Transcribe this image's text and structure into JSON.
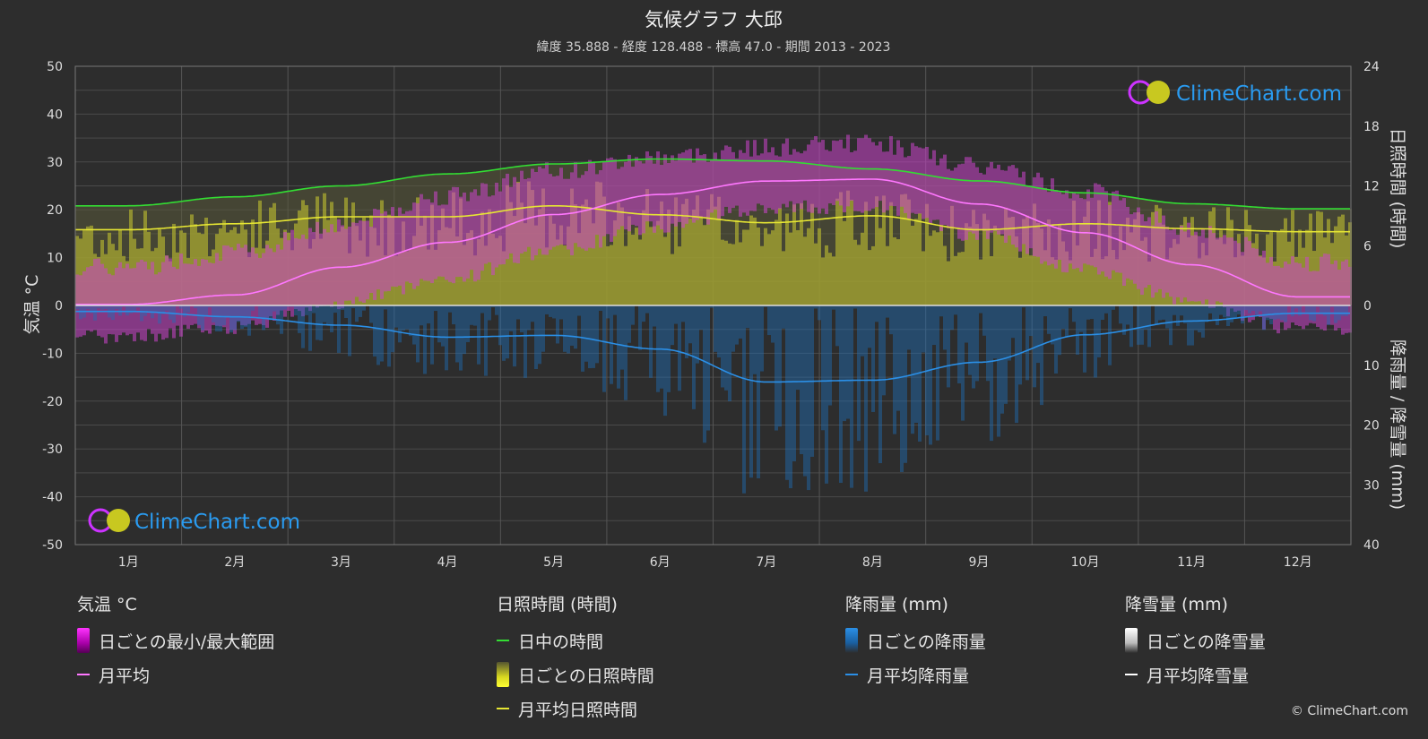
{
  "header": {
    "title": "気候グラフ 大邱",
    "subtitle": "緯度 35.888 - 経度 128.488 - 標高 47.0 - 期間 2013 - 2023"
  },
  "watermark": {
    "text": "ClimeChart.com"
  },
  "copyright": "© ClimeChart.com",
  "colors": {
    "background": "#2d2d2d",
    "daylight": "#33dd33",
    "sunshine": "#e6e633",
    "temp_avg": "#ff77ff",
    "temp_range": "#cc33cc",
    "rain": "#2b8fe6",
    "snow": "#ffffff"
  },
  "legend": {
    "temperature": {
      "title": "気温 °C",
      "range": "日ごとの最小/最大範囲",
      "avg": "月平均"
    },
    "sunshine": {
      "title": "日照時間 (時間)",
      "daylight": "日中の時間",
      "daily": "日ごとの日照時間",
      "avg": "月平均日照時間"
    },
    "rain": {
      "title": "降雨量 (mm)",
      "daily": "日ごとの降雨量",
      "avg": "月平均降雨量"
    },
    "snow": {
      "title": "降雪量 (mm)",
      "daily": "日ごとの降雪量",
      "avg": "月平均降雪量"
    }
  },
  "chart_data": {
    "type": "line",
    "categories": [
      "1月",
      "2月",
      "3月",
      "4月",
      "5月",
      "6月",
      "7月",
      "8月",
      "9月",
      "10月",
      "11月",
      "12月"
    ],
    "axes": {
      "left": {
        "label": "気温 °C",
        "range": [
          -50,
          50
        ],
        "ticks": [
          50,
          40,
          30,
          20,
          10,
          0,
          -10,
          -20,
          -30,
          -40,
          -50
        ]
      },
      "right_top": {
        "label": "日照時間 (時間)",
        "range": [
          0,
          24
        ],
        "ticks": [
          24,
          18,
          12,
          6,
          0
        ]
      },
      "right_bottom": {
        "label": "降雨量 / 降雪量 (mm)",
        "range": [
          0,
          40
        ],
        "ticks": [
          10,
          20,
          30,
          40
        ]
      }
    },
    "grid": true,
    "series": [
      {
        "name": "日中の時間",
        "axis": "hours",
        "values": [
          10.0,
          10.9,
          12.0,
          13.2,
          14.2,
          14.7,
          14.5,
          13.7,
          12.5,
          11.3,
          10.2,
          9.7
        ]
      },
      {
        "name": "月平均日照時間",
        "axis": "hours",
        "values": [
          7.6,
          8.2,
          8.9,
          8.9,
          10.0,
          9.1,
          8.3,
          9.0,
          7.6,
          8.2,
          7.7,
          7.4
        ]
      },
      {
        "name": "月平均",
        "axis": "temp",
        "values": [
          0.2,
          2.2,
          8.0,
          13.2,
          19.0,
          23.2,
          26.0,
          26.4,
          21.2,
          15.2,
          8.5,
          1.8
        ]
      },
      {
        "name": "月平均降雨量",
        "axis": "mm",
        "values": [
          1.0,
          1.9,
          3.3,
          5.3,
          5.0,
          7.3,
          12.8,
          12.5,
          9.5,
          4.9,
          2.6,
          1.3
        ]
      },
      {
        "name": "月平均降雪量",
        "axis": "mm",
        "values": [
          0.05,
          0.05,
          0,
          0,
          0,
          0,
          0,
          0,
          0,
          0,
          0,
          0.03
        ]
      }
    ],
    "temp_range": {
      "name": "日ごとの最小/最大範囲",
      "min": [
        -5.0,
        -3.0,
        2.0,
        7.0,
        13.0,
        18.0,
        22.0,
        22.0,
        16.0,
        9.0,
        2.0,
        -3.5
      ],
      "max": [
        6.0,
        9.0,
        15.0,
        21.0,
        26.0,
        29.0,
        31.0,
        32.0,
        27.0,
        22.0,
        14.0,
        7.0
      ]
    }
  }
}
